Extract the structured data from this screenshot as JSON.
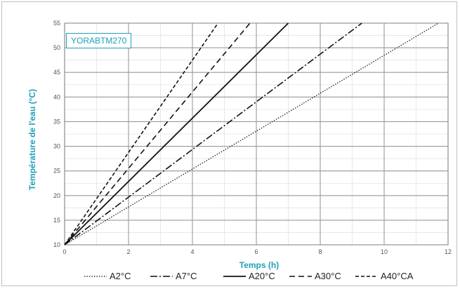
{
  "chart_data": {
    "type": "line",
    "annotation": "YORABTM270",
    "xlabel": "Temps (h)",
    "ylabel": "Température de l'eau (°C)",
    "xlim": [
      0,
      12
    ],
    "ylim": [
      10,
      55
    ],
    "x_ticks": [
      0,
      2,
      4,
      6,
      8,
      10,
      12
    ],
    "x_tick_labels": [
      "0",
      "2",
      "4",
      "6",
      "8",
      "10",
      "12"
    ],
    "y_ticks": [
      10,
      15,
      20,
      25,
      30,
      35,
      40,
      45,
      50,
      55
    ],
    "grid": true,
    "legend_position": "bottom",
    "series": [
      {
        "name": "A2°C",
        "style": "dotted",
        "x": [
          0,
          11.7
        ],
        "y": [
          10,
          55
        ]
      },
      {
        "name": "A7°C",
        "style": "dashdot",
        "x": [
          0,
          9.3
        ],
        "y": [
          10,
          55
        ]
      },
      {
        "name": "A20°C",
        "style": "solid",
        "x": [
          0,
          7.0
        ],
        "y": [
          10,
          55
        ]
      },
      {
        "name": "A30°C",
        "style": "dashed",
        "x": [
          0,
          5.8
        ],
        "y": [
          10,
          55
        ]
      },
      {
        "name": "A40°CA",
        "style": "short-dashed",
        "x": [
          0,
          4.8
        ],
        "y": [
          10,
          55
        ]
      }
    ]
  },
  "colors": {
    "axis_label": "#1e9fb7",
    "line": "#111111",
    "grid": "#9a9a9a"
  }
}
